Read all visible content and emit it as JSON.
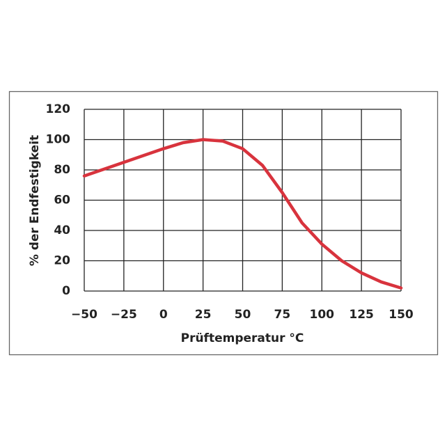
{
  "chart_data": {
    "type": "line",
    "x_label": "Prüftemperatur °C",
    "y_label": "% der Endfestigkeit",
    "x": [
      -50,
      -25,
      0,
      12.5,
      25,
      37.5,
      50,
      62.5,
      75,
      87.5,
      100,
      112.5,
      125,
      137.5,
      150
    ],
    "series": [
      {
        "color": "#d8333d",
        "values": [
          76,
          85,
          94,
          98,
          100,
          99,
          94,
          83,
          65,
          45,
          31,
          20,
          12,
          6,
          2
        ]
      }
    ],
    "xlim": [
      -50,
      150
    ],
    "xticks": [
      {
        "value": -50,
        "label": "−50"
      },
      {
        "value": -25,
        "label": "−25"
      },
      0,
      25,
      50,
      75,
      100,
      125,
      150
    ],
    "ylim": [
      0,
      120
    ],
    "yticks": [
      0,
      20,
      40,
      60,
      80,
      100,
      120
    ],
    "grid": true
  }
}
